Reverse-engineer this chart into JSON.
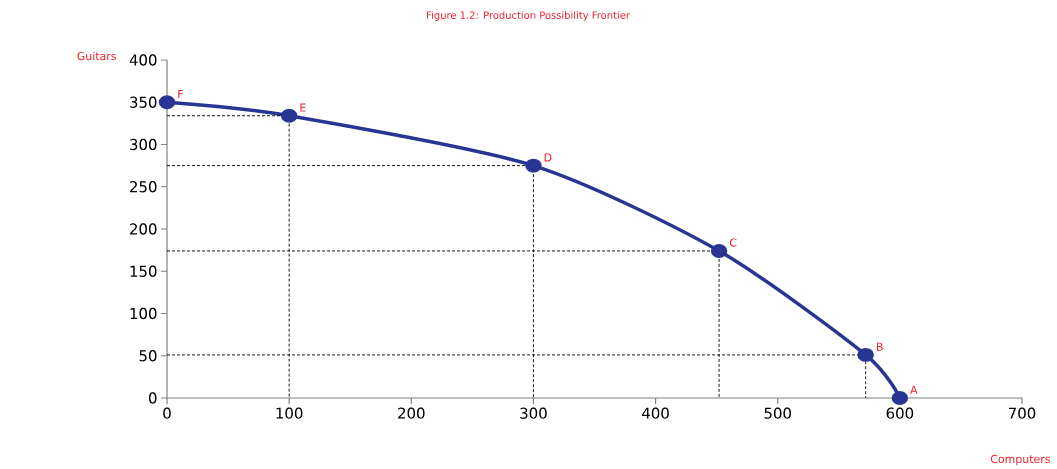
{
  "chart_data": {
    "type": "line",
    "title": "Figure 1.2:  Production Possibility Frontier",
    "xlabel": "Computers",
    "ylabel": "Guitars",
    "xlim": [
      0,
      700
    ],
    "xticks": [
      0,
      100,
      200,
      300,
      400,
      500,
      600,
      700
    ],
    "ylim": [
      0,
      400
    ],
    "yticks": [
      0,
      50,
      100,
      150,
      200,
      250,
      300,
      350,
      400
    ],
    "series": [
      {
        "color": "#000000",
        "line_style": "dashed",
        "marker": "none",
        "x": [
          0,
          100,
          100
        ],
        "values": [
          334,
          334,
          0
        ]
      },
      {
        "color": "#000000",
        "line_style": "dashed",
        "marker": "none",
        "x": [
          0,
          300,
          300
        ],
        "values": [
          275,
          275,
          0
        ]
      },
      {
        "color": "#000000",
        "line_style": "dashed",
        "marker": "none",
        "x": [
          0,
          452,
          452
        ],
        "values": [
          174,
          174,
          0
        ]
      },
      {
        "color": "#000000",
        "line_style": "dashed",
        "marker": "none",
        "x": [
          0,
          572,
          572
        ],
        "values": [
          51,
          51,
          0
        ]
      },
      {
        "color": "#283593",
        "line_style": "solid",
        "marker": "circle",
        "x": [
          0,
          100,
          300,
          452,
          572,
          600
        ],
        "values": [
          350,
          334,
          275,
          174,
          51,
          0
        ]
      }
    ],
    "annotations": [
      {
        "text": "F",
        "x": 0,
        "y": 350
      },
      {
        "text": "E",
        "x": 100,
        "y": 334
      },
      {
        "text": "D",
        "x": 300,
        "y": 275
      },
      {
        "text": "C",
        "x": 452,
        "y": 174
      },
      {
        "text": "B",
        "x": 572,
        "y": 51
      },
      {
        "text": "A",
        "x": 600,
        "y": 0
      }
    ]
  }
}
